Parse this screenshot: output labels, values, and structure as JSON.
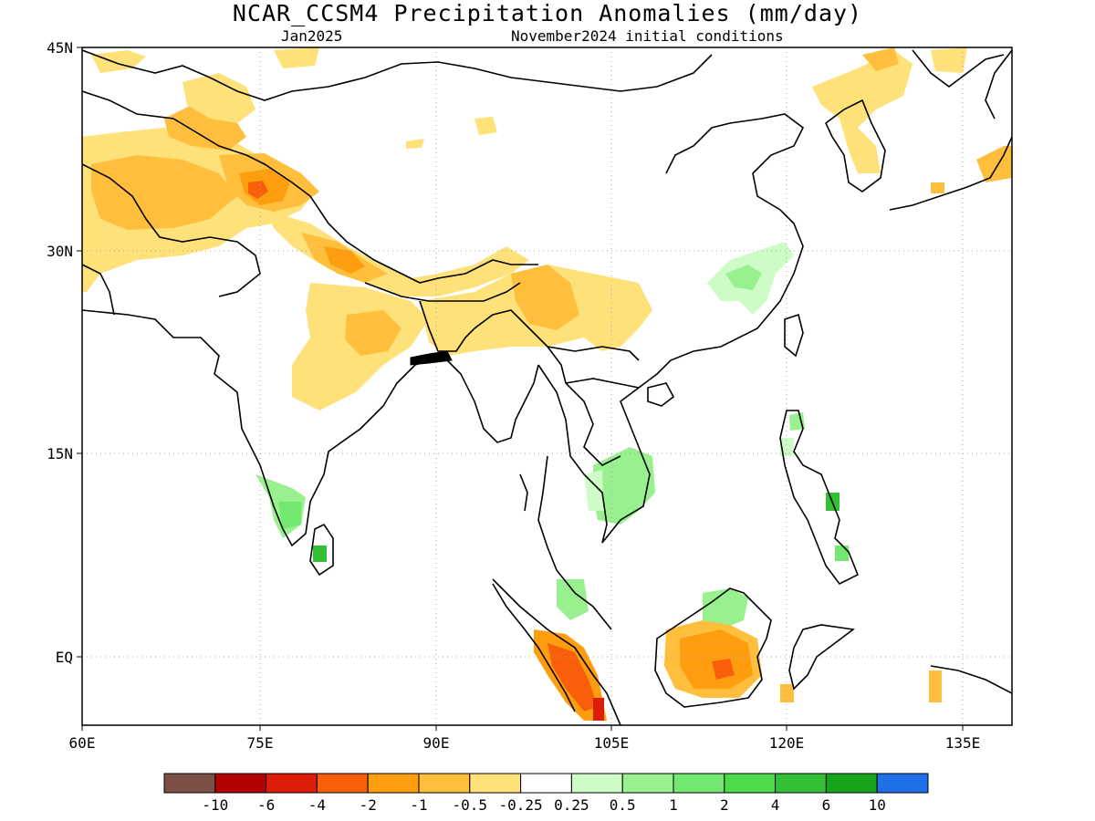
{
  "title": "NCAR_CCSM4 Precipitation Anomalies (mm/day)",
  "subtitle_left": "Jan2025",
  "subtitle_right": "November2024 initial conditions",
  "lat_labels": [
    "45N",
    "30N",
    "15N",
    "EQ"
  ],
  "lon_labels": [
    "60E",
    "75E",
    "90E",
    "105E",
    "120E",
    "135E"
  ],
  "colorbar": {
    "colors": [
      "#7b4f45",
      "#b30000",
      "#dd1c0a",
      "#f95f0b",
      "#fe9e0f",
      "#ffbe3c",
      "#ffe17a",
      "#ffffff",
      "#cdfcc6",
      "#98f08e",
      "#73e870",
      "#4ddb4c",
      "#34c035",
      "#17a31a",
      "#1e6fe8"
    ],
    "labels": [
      "-10",
      "-6",
      "-4",
      "-2",
      "-1",
      "-0.5",
      "-0.25",
      "0.25",
      "0.5",
      "1",
      "2",
      "4",
      "6",
      "10"
    ]
  },
  "map": {
    "lon_range": [
      60,
      140
    ],
    "lat_range": [
      -5.5,
      45
    ],
    "gridlines": "dotted"
  }
}
